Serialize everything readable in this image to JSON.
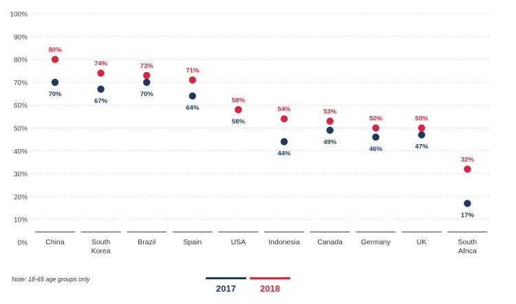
{
  "chart_data": {
    "type": "scatter",
    "categories": [
      "China",
      "South Korea",
      "Brazil",
      "Spain",
      "USA",
      "Indonesia",
      "Canada",
      "Germany",
      "UK",
      "South Africa"
    ],
    "category_lines": [
      [
        "China"
      ],
      [
        "South",
        "Korea"
      ],
      [
        "Brazil"
      ],
      [
        "Spain"
      ],
      [
        "USA"
      ],
      [
        "Indonesia"
      ],
      [
        "Canada"
      ],
      [
        "Germany"
      ],
      [
        "UK"
      ],
      [
        "South",
        "Africa"
      ]
    ],
    "series": [
      {
        "name": "2017",
        "color": "#1f3a5f",
        "values": [
          70,
          67,
          70,
          64,
          58,
          44,
          49,
          46,
          47,
          17
        ],
        "labels": [
          "70%",
          "67%",
          "70%",
          "64%",
          "58%",
          "44%",
          "49%",
          "46%",
          "47%",
          "17%"
        ]
      },
      {
        "name": "2018",
        "color": "#d7263d",
        "values": [
          80,
          74,
          73,
          71,
          58,
          54,
          53,
          50,
          50,
          32
        ],
        "labels": [
          "80%",
          "74%",
          "73%",
          "71%",
          "58%",
          "54%",
          "53%",
          "50%",
          "50%",
          "32%"
        ]
      }
    ],
    "ylim": [
      0,
      100
    ],
    "yticks": [
      "0%",
      "10%",
      "20%",
      "30%",
      "40%",
      "50%",
      "60%",
      "70%",
      "80%",
      "90%",
      "100%"
    ],
    "grid": true,
    "legend_position": "bottom"
  },
  "note": "Note: 18-65 age groups only"
}
